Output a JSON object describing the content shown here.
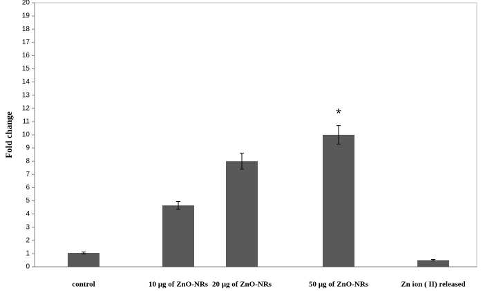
{
  "chart_data": {
    "type": "bar",
    "y_label": "Fold change",
    "categories": [
      "control",
      "10 µg of ZnO-NRs",
      "20 µg of ZnO-NRs",
      "50 µg of ZnO-NRs",
      "Zn ion ( II) released"
    ],
    "values": [
      1.05,
      4.65,
      8.0,
      10.0,
      0.5
    ],
    "errors": [
      0.07,
      0.3,
      0.6,
      0.7,
      0.05
    ],
    "color": "#595959",
    "ylim": [
      0,
      20
    ],
    "yticks": [
      0,
      1,
      2,
      3,
      4,
      5,
      6,
      7,
      8,
      9,
      10,
      11,
      12,
      13,
      14,
      15,
      16,
      17,
      18,
      19,
      20
    ],
    "annotations": [
      {
        "text": "*",
        "category": 3
      }
    ]
  }
}
